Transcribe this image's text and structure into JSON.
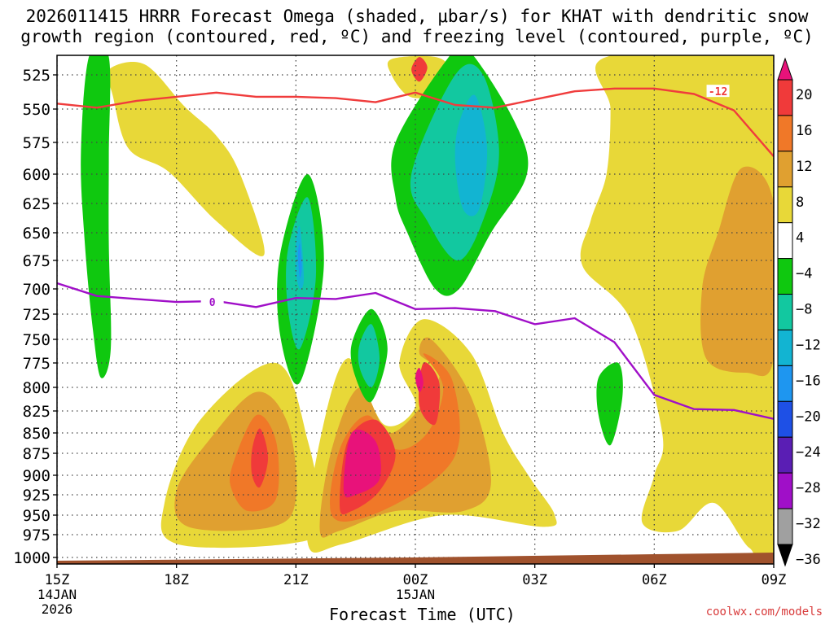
{
  "chart_data": {
    "type": "heatmap",
    "title_line1": "2026011415 HRRR Forecast Omega (shaded, μbar/s) for KHAT with dendritic snow",
    "title_line2": "growth region (contoured, red, ºC) and freezing level (contoured, purple, ºC)",
    "xlabel": "Forecast Time (UTC)",
    "ylabel": "",
    "credit": "coolwx.com/models",
    "x_ticks": [
      {
        "hour": 15,
        "label": "15Z",
        "sub1": "14JAN",
        "sub2": "2026"
      },
      {
        "hour": 18,
        "label": "18Z",
        "sub1": "",
        "sub2": ""
      },
      {
        "hour": 21,
        "label": "21Z",
        "sub1": "",
        "sub2": ""
      },
      {
        "hour": 24,
        "label": "00Z",
        "sub1": "15JAN",
        "sub2": ""
      },
      {
        "hour": 27,
        "label": "03Z",
        "sub1": "",
        "sub2": ""
      },
      {
        "hour": 30,
        "label": "06Z",
        "sub1": "",
        "sub2": ""
      },
      {
        "hour": 33,
        "label": "09Z",
        "sub1": "",
        "sub2": ""
      }
    ],
    "xlim": [
      15,
      33
    ],
    "y_ticks": [
      525,
      550,
      575,
      600,
      625,
      650,
      675,
      700,
      725,
      750,
      775,
      800,
      825,
      850,
      875,
      900,
      925,
      950,
      975,
      1000
    ],
    "ylim": [
      508,
      1005
    ],
    "colorbar": {
      "ticks": [
        "20",
        "16",
        "12",
        "8",
        "4",
        "−4",
        "−8",
        "−12",
        "−16",
        "−20",
        "−24",
        "−28",
        "−32",
        "−36"
      ],
      "colors": [
        "#e8127a",
        "#f03a3a",
        "#f07828",
        "#e0a030",
        "#e8d838",
        "#ffffff",
        "#0fc80f",
        "#12c8a0",
        "#12b4d2",
        "#1e96f0",
        "#1e50e6",
        "#5a1eb4",
        "#a00fc8",
        "#a0a0a0",
        "#000000"
      ]
    },
    "series": [
      {
        "name": "-12 ºC (dendritic growth region)",
        "color": "#f03c3c",
        "label": "-12",
        "label_at": [
          31.6,
          537
        ],
        "points": [
          [
            15,
            546
          ],
          [
            16,
            549
          ],
          [
            17,
            544
          ],
          [
            18,
            541
          ],
          [
            19,
            538
          ],
          [
            20,
            541
          ],
          [
            21,
            541
          ],
          [
            22,
            542
          ],
          [
            23,
            545
          ],
          [
            24,
            538
          ],
          [
            25,
            547
          ],
          [
            26,
            549
          ],
          [
            27,
            543
          ],
          [
            28,
            537
          ],
          [
            29,
            535
          ],
          [
            30,
            535
          ],
          [
            31,
            539
          ],
          [
            32,
            551
          ],
          [
            33,
            586
          ]
        ]
      },
      {
        "name": "0 ºC (freezing level)",
        "color": "#a00fc8",
        "label": "0",
        "label_at": [
          18.9,
          713
        ],
        "points": [
          [
            15,
            695
          ],
          [
            16,
            707
          ],
          [
            17,
            710
          ],
          [
            18,
            713
          ],
          [
            19,
            712
          ],
          [
            20,
            718
          ],
          [
            21,
            709
          ],
          [
            22,
            710
          ],
          [
            23,
            704
          ],
          [
            24,
            720
          ],
          [
            25,
            719
          ],
          [
            26,
            722
          ],
          [
            27,
            735
          ],
          [
            28,
            729
          ],
          [
            29,
            753
          ],
          [
            30,
            808
          ],
          [
            31,
            823
          ],
          [
            32,
            824
          ],
          [
            33,
            834
          ]
        ]
      }
    ],
    "omega_regions": [
      {
        "level": 4,
        "color": "#e8d838",
        "pts": [
          [
            16.3,
            520
          ],
          [
            17.2,
            515
          ],
          [
            18.2,
            548
          ],
          [
            19,
            570
          ],
          [
            19.6,
            600
          ],
          [
            20.2,
            670
          ],
          [
            19,
            640
          ],
          [
            17.8,
            598
          ],
          [
            16.8,
            580
          ],
          [
            16.4,
            540
          ]
        ]
      },
      {
        "level": 4,
        "color": "#e8d838",
        "pts": [
          [
            23.4,
            510
          ],
          [
            24.5,
            508
          ],
          [
            24.8,
            520
          ],
          [
            24.3,
            540
          ],
          [
            23.8,
            540
          ],
          [
            23.4,
            525
          ]
        ]
      },
      {
        "level": 4,
        "color": "#e8d838",
        "pts": [
          [
            17.7,
            935
          ],
          [
            18.6,
            835
          ],
          [
            20.5,
            775
          ],
          [
            21.3,
            860
          ],
          [
            21.6,
            960
          ],
          [
            20.8,
            985
          ],
          [
            18,
            985
          ]
        ]
      },
      {
        "level": 4,
        "color": "#e8d838",
        "pts": [
          [
            21.3,
            985
          ],
          [
            21.6,
            860
          ],
          [
            22.3,
            770
          ],
          [
            23.2,
            840
          ],
          [
            24,
            820
          ],
          [
            23.6,
            775
          ],
          [
            24.2,
            730
          ],
          [
            25.4,
            765
          ],
          [
            26.2,
            850
          ],
          [
            26.9,
            905
          ],
          [
            27.5,
            950
          ],
          [
            27.2,
            965
          ],
          [
            24.7,
            950
          ],
          [
            22.2,
            985
          ]
        ]
      },
      {
        "level": 4,
        "color": "#e8d838",
        "pts": [
          [
            28.8,
            508
          ],
          [
            33,
            508
          ],
          [
            33,
            985
          ],
          [
            32.4,
            990
          ],
          [
            31.5,
            935
          ],
          [
            30.6,
            970
          ],
          [
            29.7,
            960
          ],
          [
            30,
            900
          ],
          [
            30.2,
            850
          ],
          [
            29.4,
            730
          ],
          [
            28.2,
            680
          ],
          [
            28.4,
            640
          ],
          [
            28.8,
            600
          ],
          [
            28.9,
            550
          ]
        ]
      },
      {
        "level": 8,
        "color": "#e0a030",
        "pts": [
          [
            18,
            920
          ],
          [
            18.8,
            860
          ],
          [
            20,
            805
          ],
          [
            20.8,
            840
          ],
          [
            21,
            930
          ],
          [
            20.4,
            965
          ],
          [
            18.3,
            965
          ]
        ]
      },
      {
        "level": 8,
        "color": "#e0a030",
        "pts": [
          [
            21.6,
            970
          ],
          [
            21.9,
            870
          ],
          [
            22.6,
            800
          ],
          [
            23.4,
            850
          ],
          [
            24.6,
            790
          ],
          [
            24.1,
            765
          ],
          [
            24.4,
            750
          ],
          [
            25.4,
            810
          ],
          [
            25.9,
            910
          ],
          [
            25.2,
            945
          ],
          [
            23.5,
            945
          ],
          [
            22.1,
            970
          ]
        ]
      },
      {
        "level": 8,
        "color": "#e0a030",
        "pts": [
          [
            32.2,
            595
          ],
          [
            33,
            625
          ],
          [
            33,
            770
          ],
          [
            32.3,
            785
          ],
          [
            31.3,
            770
          ],
          [
            31.2,
            700
          ],
          [
            31.6,
            650
          ]
        ]
      },
      {
        "level": 12,
        "color": "#f07828",
        "pts": [
          [
            19.4,
            890
          ],
          [
            20,
            830
          ],
          [
            20.5,
            860
          ],
          [
            20.5,
            930
          ],
          [
            19.8,
            945
          ],
          [
            19.4,
            920
          ]
        ]
      },
      {
        "level": 12,
        "color": "#f07828",
        "pts": [
          [
            21.9,
            950
          ],
          [
            22.1,
            870
          ],
          [
            22.8,
            830
          ],
          [
            23.5,
            870
          ],
          [
            24.3,
            850
          ],
          [
            24.7,
            800
          ],
          [
            24.2,
            765
          ],
          [
            24.9,
            790
          ],
          [
            25.1,
            860
          ],
          [
            24.5,
            905
          ],
          [
            22.9,
            950
          ]
        ]
      },
      {
        "level": 16,
        "color": "#f03a3a",
        "pts": [
          [
            22.1,
            940
          ],
          [
            22.3,
            860
          ],
          [
            23,
            835
          ],
          [
            23.5,
            875
          ],
          [
            23.1,
            920
          ],
          [
            22.4,
            945
          ]
        ]
      },
      {
        "level": 16,
        "color": "#f03a3a",
        "pts": [
          [
            24.1,
            820
          ],
          [
            24.2,
            775
          ],
          [
            24.6,
            795
          ],
          [
            24.5,
            840
          ]
        ]
      },
      {
        "level": 16,
        "color": "#f03a3a",
        "pts": [
          [
            19.9,
            870
          ],
          [
            20.1,
            845
          ],
          [
            20.3,
            880
          ],
          [
            20.1,
            915
          ],
          [
            19.9,
            900
          ]
        ]
      },
      {
        "level": 16,
        "color": "#f03a3a",
        "pts": [
          [
            23.9,
            520
          ],
          [
            24.1,
            508
          ],
          [
            24.3,
            518
          ],
          [
            24.1,
            530
          ]
        ]
      },
      {
        "level": 20,
        "color": "#e8127a",
        "pts": [
          [
            22.2,
            920
          ],
          [
            22.4,
            850
          ],
          [
            23,
            860
          ],
          [
            23.1,
            905
          ],
          [
            22.5,
            925
          ]
        ]
      },
      {
        "level": 20,
        "color": "#e8127a",
        "pts": [
          [
            24,
            790
          ],
          [
            24.1,
            780
          ],
          [
            24.2,
            795
          ],
          [
            24.1,
            805
          ]
        ]
      },
      {
        "level": -4,
        "color": "#0fc80f",
        "pts": [
          [
            15.8,
            508
          ],
          [
            16.3,
            508
          ],
          [
            16.3,
            585
          ],
          [
            16.3,
            660
          ],
          [
            16.35,
            760
          ],
          [
            16.1,
            790
          ],
          [
            15.9,
            740
          ],
          [
            15.7,
            660
          ],
          [
            15.6,
            585
          ]
        ]
      },
      {
        "level": -4,
        "color": "#0fc80f",
        "pts": [
          [
            20.6,
            670
          ],
          [
            21.3,
            600
          ],
          [
            21.7,
            680
          ],
          [
            21.1,
            795
          ],
          [
            20.6,
            745
          ]
        ]
      },
      {
        "level": -4,
        "color": "#0fc80f",
        "pts": [
          [
            22.4,
            755
          ],
          [
            22.9,
            720
          ],
          [
            23.3,
            760
          ],
          [
            22.9,
            815
          ],
          [
            22.5,
            790
          ]
        ]
      },
      {
        "level": -4,
        "color": "#0fc80f",
        "pts": [
          [
            23.5,
            575
          ],
          [
            24.8,
            510
          ],
          [
            25.3,
            500
          ],
          [
            26.5,
            560
          ],
          [
            26.8,
            600
          ],
          [
            25.9,
            650
          ],
          [
            25.1,
            700
          ],
          [
            24.5,
            700
          ],
          [
            23.8,
            650
          ],
          [
            23.5,
            620
          ]
        ]
      },
      {
        "level": -4,
        "color": "#0fc80f",
        "pts": [
          [
            28.6,
            790
          ],
          [
            29.1,
            775
          ],
          [
            29.2,
            810
          ],
          [
            28.9,
            865
          ],
          [
            28.6,
            830
          ]
        ]
      },
      {
        "level": -8,
        "color": "#12c8a0",
        "pts": [
          [
            20.8,
            665
          ],
          [
            21.3,
            620
          ],
          [
            21.5,
            690
          ],
          [
            21.1,
            760
          ],
          [
            20.8,
            720
          ]
        ]
      },
      {
        "level": -8,
        "color": "#12c8a0",
        "pts": [
          [
            22.6,
            755
          ],
          [
            22.9,
            735
          ],
          [
            23.1,
            770
          ],
          [
            22.9,
            800
          ],
          [
            22.6,
            780
          ]
        ]
      },
      {
        "level": -8,
        "color": "#12c8a0",
        "pts": [
          [
            23.9,
            600
          ],
          [
            25,
            525
          ],
          [
            25.7,
            525
          ],
          [
            26.1,
            580
          ],
          [
            25.8,
            630
          ],
          [
            25.1,
            675
          ],
          [
            24.3,
            640
          ]
        ]
      },
      {
        "level": -12,
        "color": "#12b4d2",
        "pts": [
          [
            25.1,
            560
          ],
          [
            25.5,
            540
          ],
          [
            25.8,
            580
          ],
          [
            25.6,
            630
          ],
          [
            25.2,
            630
          ],
          [
            25,
            590
          ]
        ]
      },
      {
        "level": -12,
        "color": "#12b4d2",
        "pts": [
          [
            21,
            660
          ],
          [
            21.1,
            645
          ],
          [
            21.2,
            690
          ],
          [
            21.1,
            700
          ],
          [
            21,
            685
          ]
        ]
      },
      {
        "level": -16,
        "color": "#1e96f0",
        "pts": [
          [
            21.05,
            670
          ],
          [
            21.1,
            660
          ],
          [
            21.15,
            680
          ],
          [
            21.1,
            690
          ]
        ]
      }
    ]
  }
}
